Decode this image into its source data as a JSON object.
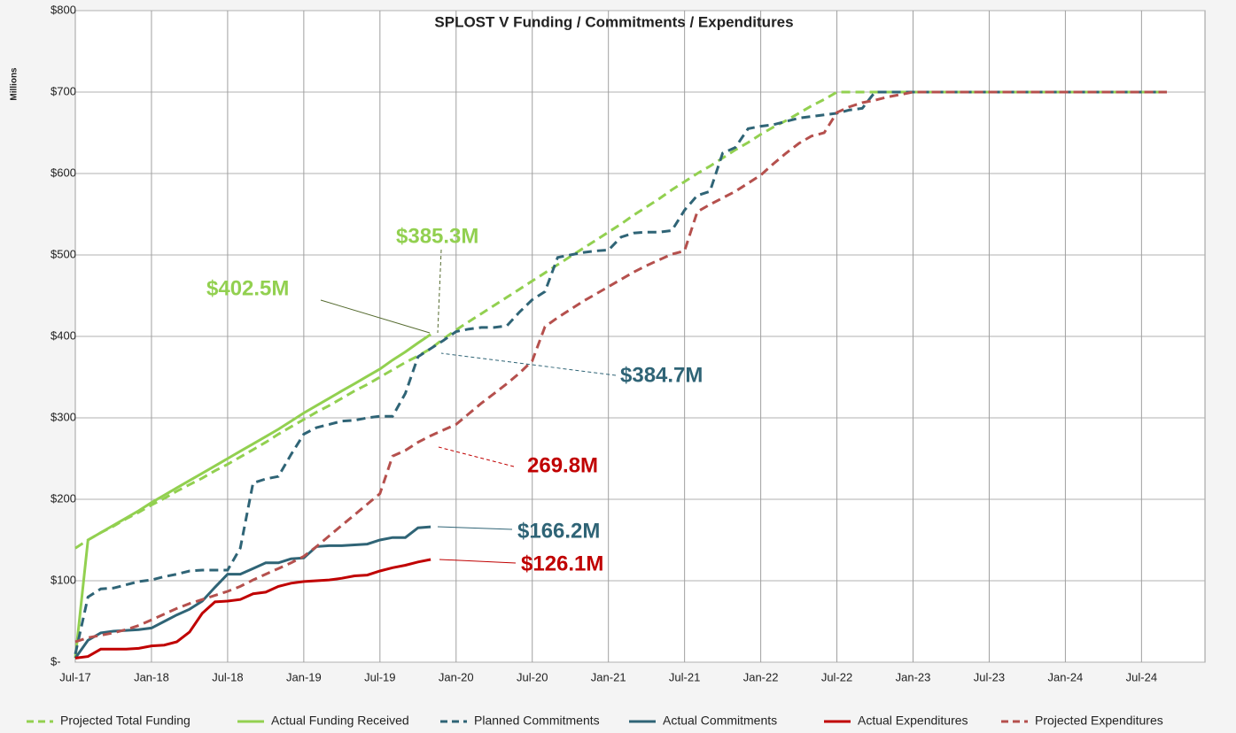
{
  "chart_data": {
    "type": "line",
    "title": "SPLOST V Funding / Commitments / Expenditures",
    "y_axis_label": "Millions",
    "categories": [
      "Jul-17",
      null,
      null,
      null,
      null,
      null,
      "Jan-18",
      null,
      null,
      null,
      null,
      null,
      "Jul-18",
      null,
      null,
      null,
      null,
      null,
      "Jan-19",
      null,
      null,
      null,
      null,
      null,
      "Jul-19",
      null,
      null,
      null,
      null,
      null,
      "Jan-20",
      null,
      null,
      null,
      null,
      null,
      "Jul-20",
      null,
      null,
      null,
      null,
      null,
      "Jan-21",
      null,
      null,
      null,
      null,
      null,
      "Jul-21",
      null,
      null,
      null,
      null,
      null,
      "Jan-22",
      null,
      null,
      null,
      null,
      null,
      "Jul-22",
      null,
      null,
      null,
      null,
      null,
      "Jan-23",
      null,
      null,
      null,
      null,
      null,
      "Jul-23",
      null,
      null,
      null,
      null,
      null,
      "Jan-24",
      null,
      null,
      null,
      null,
      null,
      "Jul-24",
      null,
      null,
      null,
      null,
      null
    ],
    "ylim": [
      0,
      800
    ],
    "yticks": [
      {
        "value": 0,
        "label": "$-"
      },
      {
        "value": 100,
        "label": "$100"
      },
      {
        "value": 200,
        "label": "$200"
      },
      {
        "value": 300,
        "label": "$300"
      },
      {
        "value": 400,
        "label": "$400"
      },
      {
        "value": 500,
        "label": "$500"
      },
      {
        "value": 600,
        "label": "$600"
      },
      {
        "value": 700,
        "label": "$700"
      },
      {
        "value": 800,
        "label": "$800"
      }
    ],
    "grid": true,
    "legend": "bottom",
    "series": [
      {
        "name": "Projected Total Funding",
        "color": "#92d050",
        "dashed": true,
        "values": [
          140,
          150,
          159,
          167,
          176,
          184,
          193,
          201,
          210,
          218,
          226,
          235,
          243,
          252,
          261,
          270,
          280,
          289,
          298,
          307,
          315,
          324,
          333,
          341,
          350,
          359,
          368,
          376,
          385,
          397,
          408,
          418,
          428,
          438,
          448,
          458,
          468,
          478,
          488,
          498,
          508,
          518,
          528,
          538,
          549,
          559,
          569,
          580,
          590,
          600,
          609,
          619,
          629,
          638,
          648,
          657,
          665,
          674,
          683,
          691,
          700,
          700,
          700,
          700,
          700,
          700,
          700,
          700,
          700,
          700,
          700,
          700,
          700,
          700,
          700,
          700,
          700,
          700,
          700,
          700,
          700,
          700,
          700,
          700,
          700,
          700,
          700,
          null,
          null,
          null
        ]
      },
      {
        "name": "Actual Funding Received",
        "color": "#92d050",
        "dashed": false,
        "values": [
          5,
          150,
          159,
          168,
          177,
          186,
          196,
          205,
          214,
          223,
          232,
          241,
          250,
          259,
          268,
          277,
          286,
          296,
          306,
          315,
          324,
          333,
          342,
          351,
          360,
          371,
          381,
          392,
          402.5,
          null,
          null,
          null,
          null,
          null,
          null,
          null,
          null,
          null,
          null,
          null,
          null,
          null,
          null,
          null,
          null,
          null,
          null,
          null,
          null,
          null,
          null,
          null,
          null,
          null,
          null,
          null,
          null,
          null,
          null,
          null,
          null,
          null,
          null,
          null,
          null,
          null,
          null,
          null,
          null,
          null,
          null,
          null,
          null,
          null,
          null,
          null,
          null,
          null,
          null,
          null,
          null,
          null,
          null,
          null,
          null,
          null,
          null,
          null,
          null,
          null
        ]
      },
      {
        "name": "Planned Commitments",
        "color": "#2f6476",
        "dashed": true,
        "values": [
          10,
          80,
          90,
          91,
          95,
          99,
          101,
          105,
          108,
          112,
          113,
          113,
          113,
          140,
          220,
          225,
          228,
          255,
          280,
          288,
          292,
          296,
          297,
          300,
          302,
          302,
          330,
          375,
          385,
          395,
          406,
          409,
          411,
          411,
          413,
          430,
          445,
          455,
          497,
          500,
          503,
          505,
          506,
          522,
          527,
          528,
          528,
          530,
          555,
          573,
          578,
          625,
          632,
          655,
          658,
          660,
          664,
          668,
          670,
          672,
          674,
          678,
          680,
          700,
          700,
          700,
          700,
          700,
          700,
          700,
          700,
          700,
          700,
          700,
          700,
          700,
          700,
          700,
          700,
          700,
          700,
          700,
          700,
          700,
          700,
          700,
          700,
          null,
          null,
          null
        ]
      },
      {
        "name": "Actual Commitments",
        "color": "#2f6476",
        "dashed": false,
        "values": [
          5,
          27,
          36,
          38,
          39,
          40,
          42,
          50,
          58,
          65,
          75,
          92,
          108,
          108,
          115,
          122,
          122,
          127,
          128,
          142,
          143,
          143,
          144,
          145,
          150,
          153,
          153,
          165,
          166.2,
          null,
          null,
          null,
          null,
          null,
          null,
          null,
          null,
          null,
          null,
          null,
          null,
          null,
          null,
          null,
          null,
          null,
          null,
          null,
          null,
          null,
          null,
          null,
          null,
          null,
          null,
          null,
          null,
          null,
          null,
          null,
          null,
          null,
          null,
          null,
          null,
          null,
          null,
          null,
          null,
          null,
          null,
          null,
          null,
          null,
          null,
          null,
          null,
          null,
          null,
          null,
          null,
          null,
          null,
          null,
          null,
          null,
          null,
          null,
          null,
          null
        ]
      },
      {
        "name": "Actual Expenditures",
        "color": "#c00000",
        "dashed": false,
        "values": [
          5,
          7,
          16,
          16,
          16,
          17,
          20,
          21,
          25,
          37,
          60,
          74,
          75,
          77,
          84,
          86,
          93,
          97,
          99,
          100,
          101,
          103,
          106,
          107,
          112,
          116,
          119,
          123,
          126.1,
          null,
          null,
          null,
          null,
          null,
          null,
          null,
          null,
          null,
          null,
          null,
          null,
          null,
          null,
          null,
          null,
          null,
          null,
          null,
          null,
          null,
          null,
          null,
          null,
          null,
          null,
          null,
          null,
          null,
          null,
          null,
          null,
          null,
          null,
          null,
          null,
          null,
          null,
          null,
          null,
          null,
          null,
          null,
          null,
          null,
          null,
          null,
          null,
          null,
          null,
          null,
          null,
          null,
          null,
          null,
          null,
          null,
          null,
          null,
          null,
          null
        ]
      },
      {
        "name": "Projected Expenditures",
        "color": "#b5504d",
        "dashed": true,
        "values": [
          25,
          30,
          33,
          36,
          40,
          45,
          52,
          59,
          66,
          72,
          77,
          82,
          87,
          93,
          101,
          108,
          115,
          122,
          130,
          142,
          155,
          168,
          181,
          194,
          207,
          253,
          260,
          270,
          278,
          285,
          292,
          305,
          318,
          330,
          342,
          355,
          370,
          412,
          423,
          433,
          443,
          452,
          461,
          470,
          479,
          487,
          494,
          501,
          505,
          553,
          562,
          570,
          578,
          588,
          598,
          612,
          625,
          637,
          646,
          650,
          675,
          682,
          687,
          690,
          694,
          697,
          700,
          700,
          700,
          700,
          700,
          700,
          700,
          700,
          700,
          700,
          700,
          700,
          700,
          700,
          700,
          700,
          700,
          700,
          700,
          700,
          700,
          null,
          null,
          null
        ]
      }
    ],
    "annotations": [
      {
        "text": "$385.3M",
        "color": "#92d050"
      },
      {
        "text": "$402.5M",
        "color": "#92d050"
      },
      {
        "text": "$384.7M",
        "color": "#2f6476"
      },
      {
        "text": "269.8M",
        "color": "#c00000"
      },
      {
        "text": "$166.2M",
        "color": "#2f6476"
      },
      {
        "text": "$126.1M",
        "color": "#c00000"
      }
    ]
  }
}
